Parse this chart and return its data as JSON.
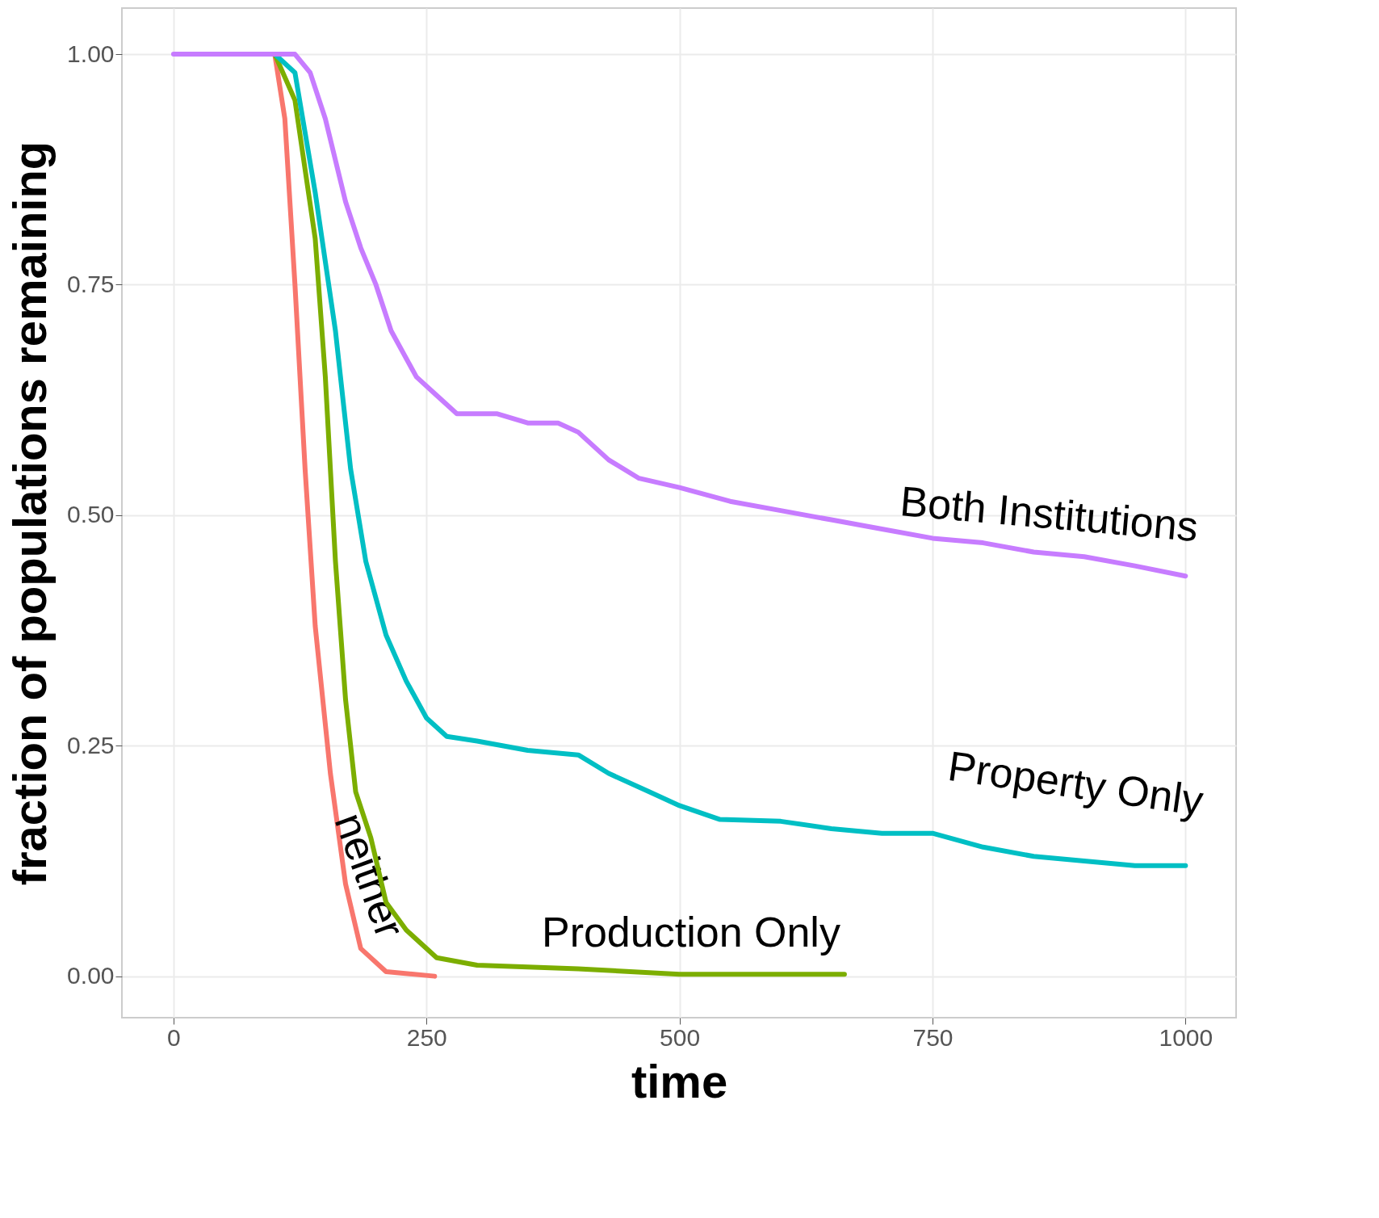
{
  "chart_data": {
    "type": "line",
    "xlabel": "time",
    "ylabel": "fraction of populations remaining",
    "xlim": [
      -51,
      1050
    ],
    "ylim": [
      -0.045,
      1.05
    ],
    "xticks": [
      0,
      250,
      500,
      750,
      1000
    ],
    "yticks": [
      {
        "value": 0,
        "label": "0.00"
      },
      {
        "value": 0.25,
        "label": "0.25"
      },
      {
        "value": 0.5,
        "label": "0.50"
      },
      {
        "value": 0.75,
        "label": "0.75"
      },
      {
        "value": 1,
        "label": "1.00"
      }
    ],
    "grid": true,
    "legend": false,
    "series": [
      {
        "name": "neither",
        "color": "#f8766d",
        "x": [
          100,
          110,
          120,
          130,
          140,
          155,
          170,
          185,
          210,
          258
        ],
        "values": [
          1,
          0.93,
          0.75,
          0.55,
          0.38,
          0.22,
          0.1,
          0.03,
          0.005,
          0
        ]
      },
      {
        "name": "Production Only",
        "color": "#7cae00",
        "x": [
          100,
          120,
          140,
          150,
          160,
          170,
          180,
          195,
          210,
          230,
          260,
          300,
          400,
          500,
          663
        ],
        "values": [
          1,
          0.95,
          0.8,
          0.65,
          0.45,
          0.3,
          0.2,
          0.15,
          0.08,
          0.05,
          0.02,
          0.012,
          0.008,
          0.002,
          0.002
        ]
      },
      {
        "name": "Property Only",
        "color": "#00bfc4",
        "x": [
          100,
          120,
          140,
          160,
          175,
          190,
          210,
          230,
          250,
          270,
          300,
          350,
          400,
          430,
          470,
          500,
          540,
          600,
          650,
          700,
          750,
          800,
          850,
          900,
          950,
          1000
        ],
        "values": [
          1,
          0.98,
          0.85,
          0.7,
          0.55,
          0.45,
          0.37,
          0.32,
          0.28,
          0.26,
          0.255,
          0.245,
          0.24,
          0.22,
          0.2,
          0.185,
          0.17,
          0.168,
          0.16,
          0.155,
          0.155,
          0.14,
          0.13,
          0.125,
          0.12,
          0.12
        ]
      },
      {
        "name": "Both Institutions",
        "color": "#c77cff",
        "x": [
          0,
          100,
          120,
          135,
          150,
          170,
          185,
          200,
          215,
          240,
          260,
          280,
          320,
          350,
          380,
          400,
          430,
          460,
          500,
          550,
          600,
          650,
          700,
          750,
          800,
          850,
          900,
          950,
          1000
        ],
        "values": [
          1,
          1,
          1,
          0.98,
          0.93,
          0.84,
          0.79,
          0.75,
          0.7,
          0.65,
          0.63,
          0.61,
          0.61,
          0.6,
          0.6,
          0.59,
          0.56,
          0.54,
          0.53,
          0.515,
          0.505,
          0.495,
          0.485,
          0.475,
          0.47,
          0.46,
          0.455,
          0.445,
          0.434
        ]
      }
    ]
  }
}
